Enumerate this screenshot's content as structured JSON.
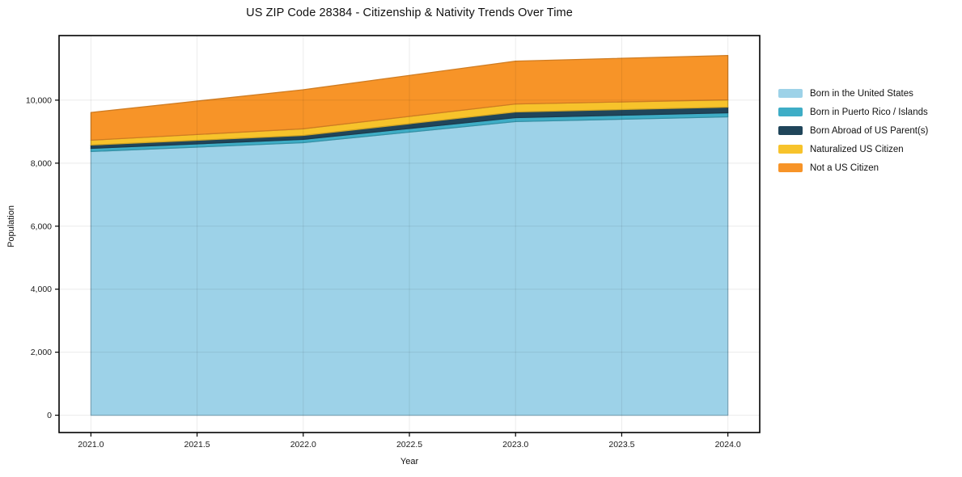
{
  "chart_data": {
    "type": "area",
    "stacked": true,
    "title": "US ZIP Code 28384 - Citizenship & Nativity Trends Over Time",
    "xlabel": "Year",
    "ylabel": "Population",
    "x": [
      2021,
      2022,
      2023,
      2024
    ],
    "series": [
      {
        "name": "Born in the United States",
        "color": "#9DD2E8",
        "values": [
          8370,
          8650,
          9320,
          9470
        ]
      },
      {
        "name": "Born in Puerto Rico / Islands",
        "color": "#3EADC6",
        "values": [
          100,
          105,
          125,
          130
        ]
      },
      {
        "name": "Born Abroad of US Parent(s)",
        "color": "#20455A",
        "values": [
          105,
          125,
          180,
          180
        ]
      },
      {
        "name": "Naturalized US Citizen",
        "color": "#F7C32B",
        "values": [
          155,
          210,
          255,
          230
        ]
      },
      {
        "name": "Not a US Citizen",
        "color": "#F79428",
        "values": [
          880,
          1240,
          1360,
          1410
        ]
      }
    ],
    "xlim": [
      2020.85,
      2024.15
    ],
    "ylim": [
      -550,
      12050
    ],
    "x_ticks": {
      "values": [
        2021,
        2021.5,
        2022,
        2022.5,
        2023,
        2023.5,
        2024
      ],
      "labels": [
        "2021.0",
        "2021.5",
        "2022.0",
        "2022.5",
        "2023.0",
        "2023.5",
        "2024.0"
      ]
    },
    "y_ticks": {
      "values": [
        0,
        2000,
        4000,
        6000,
        8000,
        10000
      ],
      "labels": [
        "0",
        "2,000",
        "4,000",
        "6,000",
        "8,000",
        "10,000"
      ]
    },
    "grid": true,
    "grid_color": "rgba(0,0,0,0.08)",
    "spine_color": "#000000",
    "legend_position": "right-outside"
  }
}
